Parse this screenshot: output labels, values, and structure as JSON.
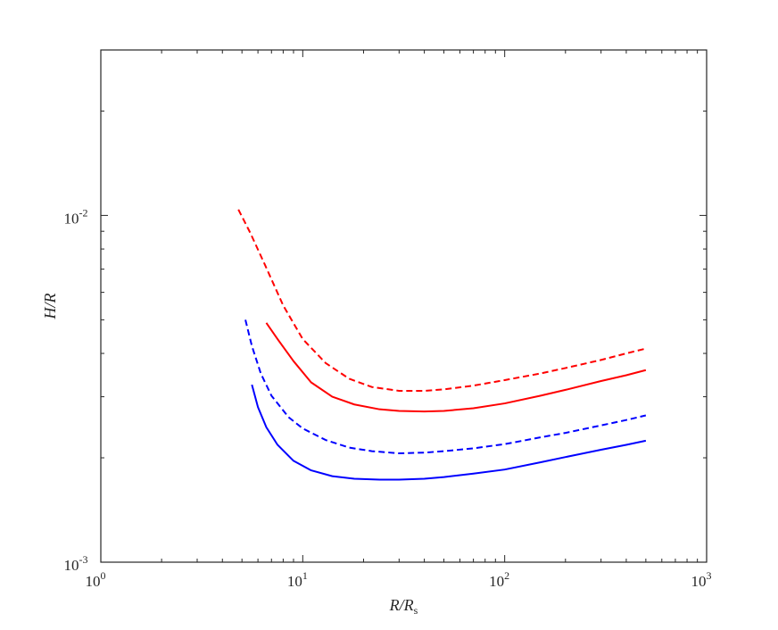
{
  "chart_data": {
    "type": "line",
    "title": "",
    "xlabel": "R/R",
    "xlabel_subscript": "s",
    "ylabel": "H/R",
    "xscale": "log",
    "yscale": "log",
    "xlim": [
      1,
      1000
    ],
    "ylim": [
      0.001,
      0.03
    ],
    "grid": false,
    "legend": "none",
    "x_ticks": [
      {
        "value": 1,
        "base": "10",
        "exp": "0"
      },
      {
        "value": 10,
        "base": "10",
        "exp": "1"
      },
      {
        "value": 100,
        "base": "10",
        "exp": "2"
      },
      {
        "value": 1000,
        "base": "10",
        "exp": "3"
      }
    ],
    "y_ticks": [
      {
        "value": 0.001,
        "base": "10",
        "exp": "-3"
      },
      {
        "value": 0.01,
        "base": "10",
        "exp": "-2"
      }
    ],
    "series": [
      {
        "color": "#ff0000",
        "style": "dashed",
        "x": [
          4.8,
          5.5,
          6.5,
          8,
          10,
          13,
          17,
          22,
          30,
          40,
          50,
          70,
          100,
          150,
          200,
          300,
          400,
          500
        ],
        "y": [
          0.0104,
          0.0089,
          0.0072,
          0.0055,
          0.0044,
          0.00375,
          0.00338,
          0.0032,
          0.00312,
          0.00312,
          0.00315,
          0.00323,
          0.00335,
          0.0035,
          0.00363,
          0.00383,
          0.004,
          0.00413
        ]
      },
      {
        "color": "#ff0000",
        "style": "solid",
        "x": [
          6.6,
          7.5,
          9,
          11,
          14,
          18,
          24,
          30,
          40,
          50,
          70,
          100,
          150,
          200,
          300,
          400,
          500
        ],
        "y": [
          0.0049,
          0.0044,
          0.0038,
          0.0033,
          0.003,
          0.00285,
          0.00276,
          0.00273,
          0.00272,
          0.00273,
          0.00278,
          0.00287,
          0.00302,
          0.00314,
          0.00333,
          0.00346,
          0.00358
        ]
      },
      {
        "color": "#0000ff",
        "style": "dashed",
        "x": [
          5.2,
          5.6,
          6.2,
          7,
          8.5,
          10,
          13,
          17,
          22,
          30,
          40,
          50,
          70,
          100,
          150,
          200,
          300,
          400,
          500
        ],
        "y": [
          0.005,
          0.0042,
          0.0035,
          0.00302,
          0.00262,
          0.00243,
          0.00225,
          0.00214,
          0.00209,
          0.00206,
          0.00207,
          0.00209,
          0.00213,
          0.00219,
          0.00229,
          0.00236,
          0.00248,
          0.00257,
          0.00265
        ]
      },
      {
        "color": "#0000ff",
        "style": "solid",
        "x": [
          5.6,
          6,
          6.6,
          7.5,
          9,
          11,
          14,
          18,
          24,
          30,
          40,
          50,
          70,
          100,
          150,
          200,
          300,
          400,
          500
        ],
        "y": [
          0.00325,
          0.0028,
          0.00245,
          0.00218,
          0.00196,
          0.00184,
          0.00177,
          0.00174,
          0.00173,
          0.00173,
          0.00174,
          0.00176,
          0.0018,
          0.00185,
          0.00194,
          0.00201,
          0.00211,
          0.00218,
          0.00224
        ]
      }
    ]
  }
}
